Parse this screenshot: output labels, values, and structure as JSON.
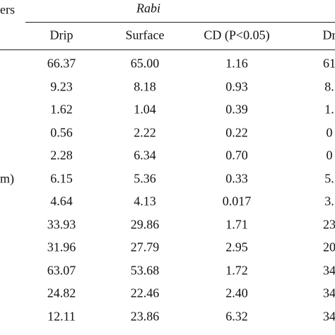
{
  "header": {
    "param_label": "ers",
    "season": "Rabi",
    "columns": [
      "Drip",
      "Surface",
      "CD (P<0.05)",
      "Dr"
    ]
  },
  "table": {
    "rows": [
      {
        "cells": [
          "66.37",
          "65.00",
          "1.16",
          "61"
        ]
      },
      {
        "cells": [
          "9.23",
          "8.18",
          "0.93",
          "8."
        ]
      },
      {
        "cells": [
          "1.62",
          "1.04",
          "0.39",
          "1."
        ]
      },
      {
        "cells": [
          "0.56",
          "2.22",
          "0.22",
          "0"
        ]
      },
      {
        "cells": [
          "2.28",
          "6.34",
          "0.70",
          "0"
        ]
      },
      {
        "label": "m)",
        "cells": [
          "6.15",
          "5.36",
          "0.33",
          "5."
        ]
      },
      {
        "cells": [
          "4.64",
          "4.13",
          "0.017",
          "3."
        ]
      },
      {
        "cells": [
          "33.93",
          "29.86",
          "1.71",
          "23"
        ]
      },
      {
        "cells": [
          "31.96",
          "27.79",
          "2.95",
          "20"
        ]
      },
      {
        "cells": [
          "63.07",
          "53.68",
          "1.72",
          "34"
        ]
      },
      {
        "cells": [
          "24.82",
          "22.46",
          "2.40",
          "34"
        ]
      },
      {
        "cells": [
          "12.11",
          "23.86",
          "6.32",
          "34"
        ]
      }
    ]
  }
}
